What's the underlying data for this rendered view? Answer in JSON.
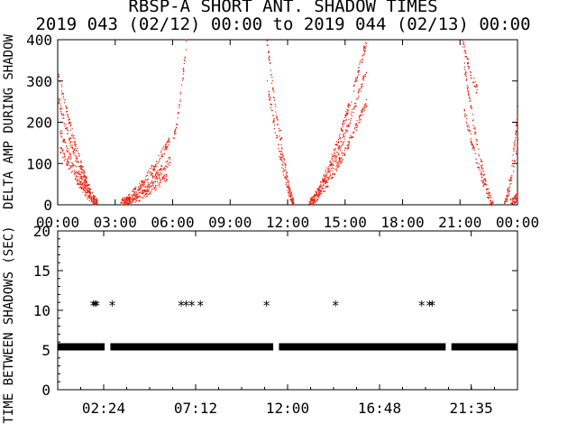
{
  "title": "RBSP-A SHORT ANT. SHADOW TIMES",
  "subtitle": "2019 043 (02/12) 00:00 to 2019 044 (02/13) 00:00",
  "colors": {
    "axis": "#000000",
    "dots": "#e8200c",
    "stars": "#000000",
    "background": "#ffffff"
  },
  "chart_data": [
    {
      "type": "scatter",
      "ylabel": "DELTA AMP DURING SHADOW",
      "xlim": [
        "00:00",
        "24:00"
      ],
      "ylim": [
        0,
        400
      ],
      "yticks": [
        "0",
        "100",
        "200",
        "300",
        "400"
      ],
      "xticks": [
        "00:00",
        "03:00",
        "06:00",
        "09:00",
        "12:00",
        "15:00",
        "18:00",
        "21:00",
        "00:00"
      ],
      "grid": false,
      "series": [
        {
          "values_description_free": true,
          "segments": [
            {
              "t0": 0.0,
              "t1": 2.05,
              "v0": 320,
              "v1": 5
            },
            {
              "t0": 0.0,
              "t1": 2.05,
              "v0": 260,
              "v1": 5
            },
            {
              "t0": 0.1,
              "t1": 2.05,
              "v0": 180,
              "v1": 5
            },
            {
              "t0": 0.1,
              "t1": 2.05,
              "v0": 140,
              "v1": 5
            },
            {
              "t0": 3.25,
              "t1": 5.85,
              "v0": 5,
              "v1": 160
            },
            {
              "t0": 3.25,
              "t1": 5.85,
              "v0": 5,
              "v1": 110
            },
            {
              "t0": 3.4,
              "t1": 5.7,
              "v0": 5,
              "v1": 70
            },
            {
              "t0": 6.0,
              "t1": 6.7,
              "v0": 160,
              "v1": 400
            },
            {
              "t0": 10.9,
              "t1": 12.3,
              "v0": 400,
              "v1": 5
            },
            {
              "t0": 10.9,
              "t1": 12.3,
              "v0": 300,
              "v1": 5
            },
            {
              "t0": 11.6,
              "t1": 12.3,
              "v0": 180,
              "v1": 5
            },
            {
              "t0": 13.1,
              "t1": 16.1,
              "v0": 5,
              "v1": 400
            },
            {
              "t0": 13.1,
              "t1": 16.1,
              "v0": 5,
              "v1": 330
            },
            {
              "t0": 13.1,
              "t1": 16.1,
              "v0": 5,
              "v1": 250
            },
            {
              "t0": 21.1,
              "t1": 21.9,
              "v0": 400,
              "v1": 280
            },
            {
              "t0": 21.2,
              "t1": 22.7,
              "v0": 340,
              "v1": 5
            },
            {
              "t0": 21.2,
              "t1": 22.7,
              "v0": 230,
              "v1": 5
            },
            {
              "t0": 23.3,
              "t1": 24.0,
              "v0": 5,
              "v1": 230
            },
            {
              "t0": 23.3,
              "t1": 24.0,
              "v0": 5,
              "v1": 160
            },
            {
              "t0": 23.6,
              "t1": 27.0,
              "v0": 5,
              "v1": 400
            },
            {
              "t0": 23.6,
              "t1": 27.0,
              "v0": 5,
              "v1": 330
            }
          ]
        }
      ]
    },
    {
      "type": "scatter",
      "ylabel": "TIME BETWEEN SHADOWS (SEC)",
      "xlim": [
        0,
        24
      ],
      "ylim": [
        0,
        20
      ],
      "yticks": [
        "0",
        "5",
        "10",
        "15",
        "20"
      ],
      "xticks": [
        "02:24",
        "07:12",
        "12:00",
        "16:48",
        "21:35"
      ],
      "grid": false,
      "band": {
        "value": 5.4,
        "gaps": [
          [
            2.45,
            2.75
          ],
          [
            11.25,
            11.55
          ],
          [
            20.25,
            20.55
          ]
        ]
      },
      "stars": [
        {
          "x": 1.86,
          "y": 10.8
        },
        {
          "x": 1.95,
          "y": 10.8
        },
        {
          "x": 2.03,
          "y": 10.8
        },
        {
          "x": 2.85,
          "y": 10.8
        },
        {
          "x": 6.45,
          "y": 10.8
        },
        {
          "x": 6.7,
          "y": 10.8
        },
        {
          "x": 7.0,
          "y": 10.8
        },
        {
          "x": 7.45,
          "y": 10.8
        },
        {
          "x": 10.9,
          "y": 10.8
        },
        {
          "x": 14.5,
          "y": 10.8
        },
        {
          "x": 19.0,
          "y": 10.8
        },
        {
          "x": 19.4,
          "y": 10.8
        },
        {
          "x": 19.55,
          "y": 10.8
        }
      ]
    }
  ]
}
